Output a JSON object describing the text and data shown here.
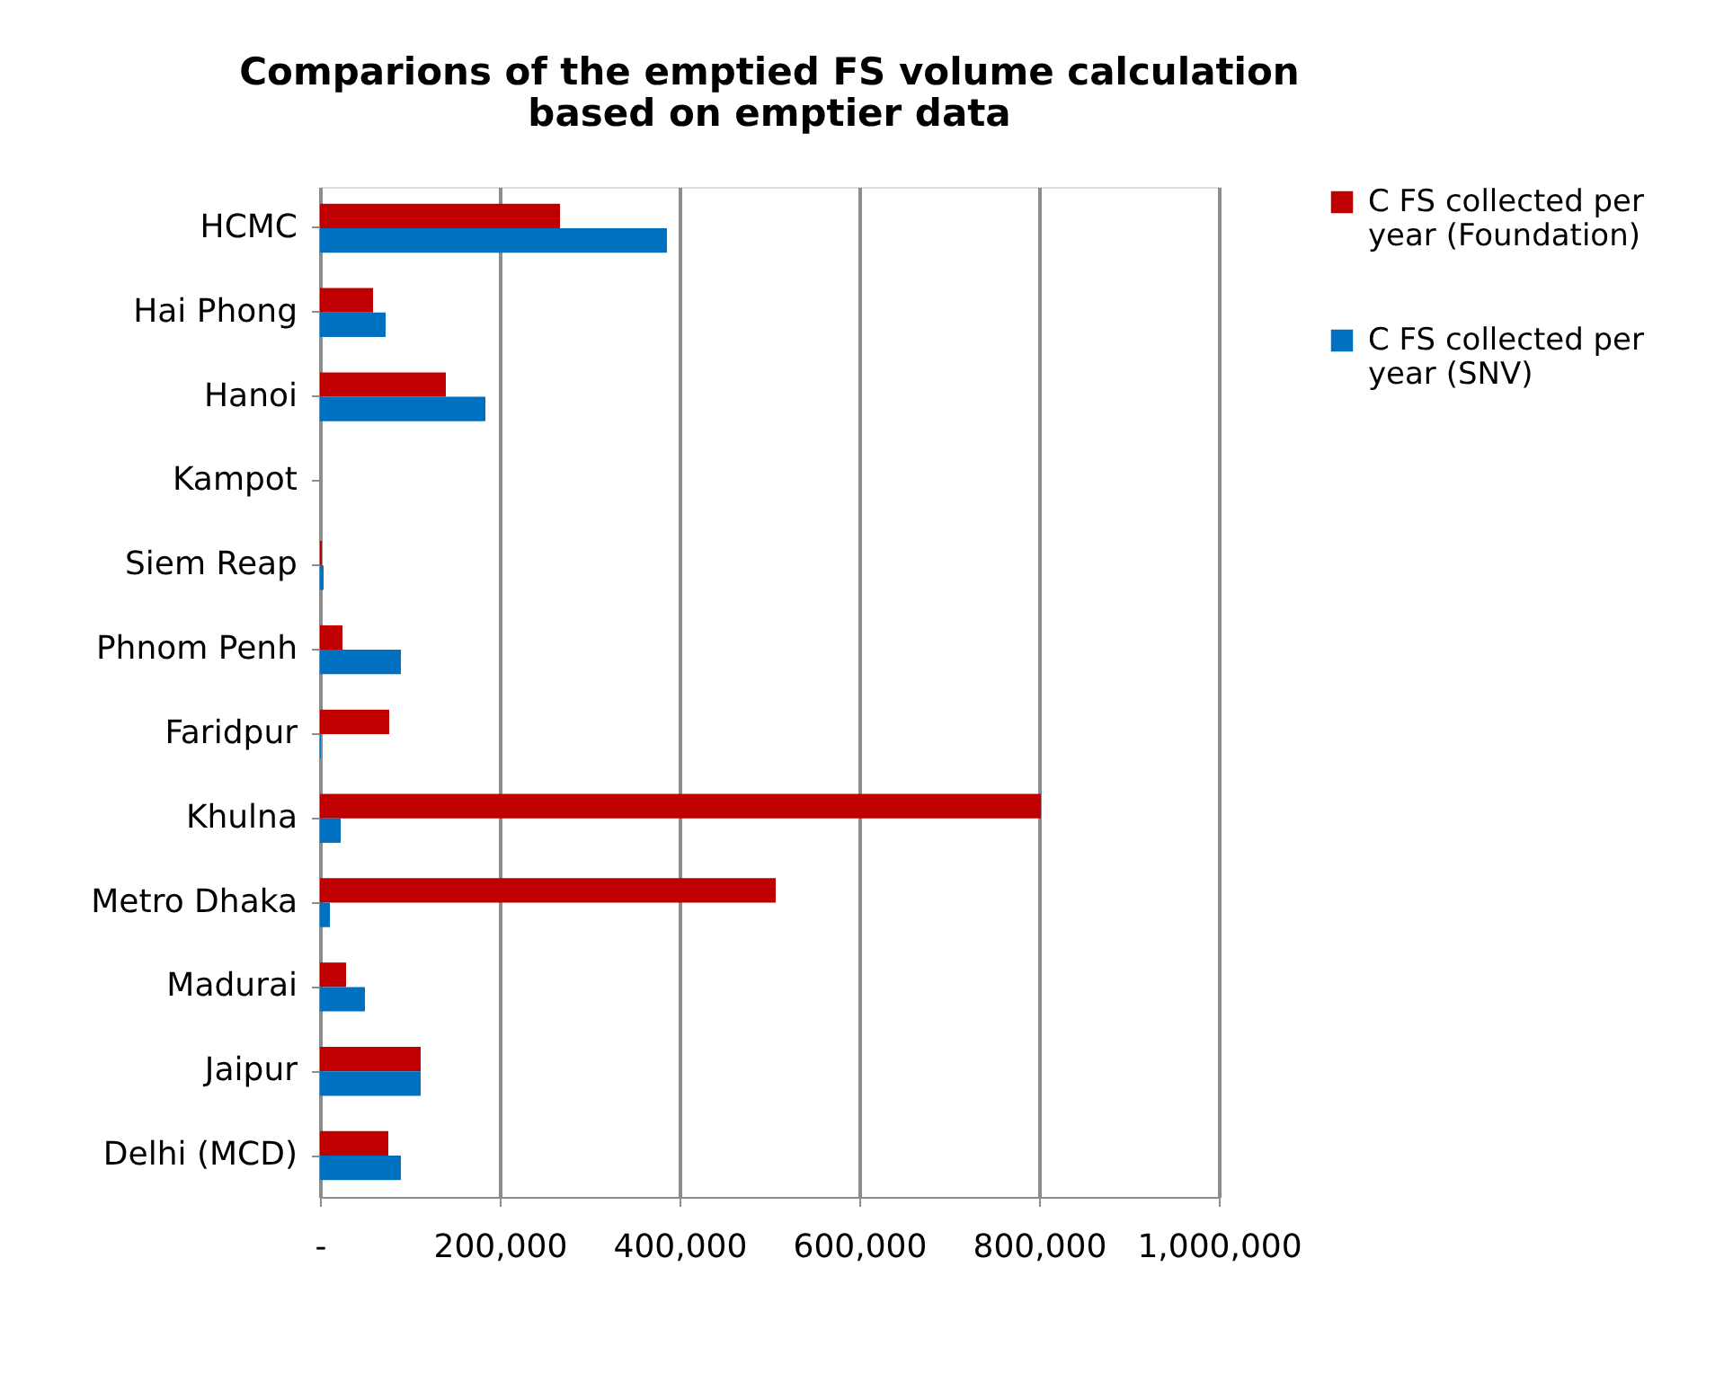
{
  "chart_data": {
    "type": "bar",
    "orientation": "horizontal",
    "title": "Comparions of the emptied FS volume calculation based on emptier data",
    "categories": [
      "HCMC",
      "Hai Phong",
      "Hanoi",
      "Kampot",
      "Siem Reap",
      "Phnom Penh",
      "Faridpur",
      "Khulna",
      "Metro Dhaka",
      "Madurai",
      "Jaipur",
      "Delhi (MCD)"
    ],
    "series": [
      {
        "name": "C FS collected per year (Foundation)",
        "color": "#c00000",
        "values": [
          267000,
          59000,
          140000,
          0,
          2000,
          25000,
          77000,
          802000,
          507000,
          29000,
          112000,
          76000
        ]
      },
      {
        "name": "C FS collected per year (SNV)",
        "color": "#0070c0",
        "values": [
          386000,
          73000,
          184000,
          0,
          4000,
          90000,
          1000,
          23000,
          11000,
          50000,
          112000,
          90000
        ]
      }
    ],
    "xlim": [
      0,
      1000000
    ],
    "xticks": [
      {
        "value": 0,
        "label": "-"
      },
      {
        "value": 200000,
        "label": "200,000"
      },
      {
        "value": 400000,
        "label": "400,000"
      },
      {
        "value": 600000,
        "label": "600,000"
      },
      {
        "value": 800000,
        "label": "800,000"
      },
      {
        "value": 1000000,
        "label": "1,000,000"
      }
    ],
    "grid": "x",
    "legend": "right"
  }
}
